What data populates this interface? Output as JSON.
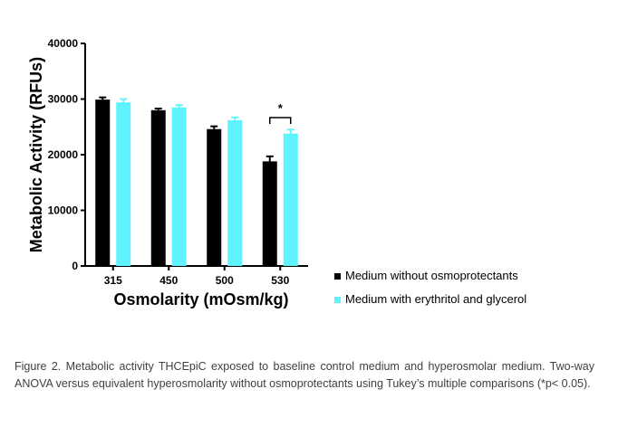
{
  "chart_data": {
    "type": "bar",
    "xlabel": "Osmolarity (mOsm/kg)",
    "ylabel": "Metabolic Activity (RFUs)",
    "ylim": [
      0,
      40000
    ],
    "yticks": [
      0,
      10000,
      20000,
      30000,
      40000
    ],
    "categories": [
      "315",
      "450",
      "500",
      "530"
    ],
    "series": [
      {
        "name": "Medium without osmoprotectants",
        "color": "#000000",
        "values": [
          29900,
          28000,
          24600,
          18800
        ],
        "errors": [
          400,
          300,
          500,
          900
        ]
      },
      {
        "name": "Medium with erythritol and glycerol",
        "color": "#5FF3FF",
        "values": [
          29400,
          28500,
          26200,
          23800
        ],
        "errors": [
          600,
          400,
          500,
          700
        ]
      }
    ],
    "significance": [
      {
        "category": "530",
        "label": "*"
      }
    ],
    "legend_position": "bottom-right"
  },
  "caption": "Figure 2. Metabolic activity THCEpiC exposed to baseline control medium and hyperosmolar medium. Two-way ANOVA versus equivalent hyperosmolarity without osmoprotectants using Tukey’s multiple comparisons (*p< 0.05)."
}
